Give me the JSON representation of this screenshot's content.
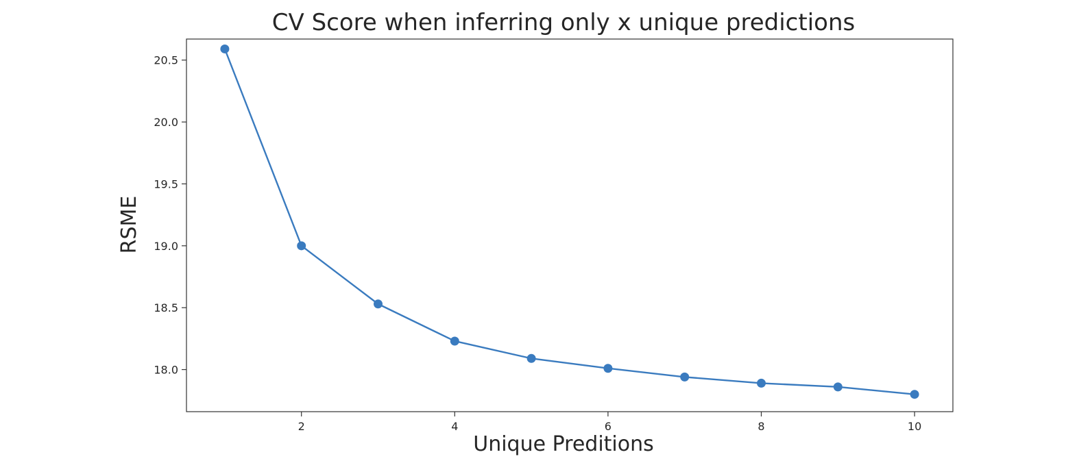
{
  "chart_data": {
    "type": "line",
    "title": "CV Score when inferring only x unique predictions",
    "xlabel": "Unique Preditions",
    "ylabel": "RSME",
    "xlim": [
      0.5,
      10.5
    ],
    "ylim": [
      17.66,
      20.67
    ],
    "x_ticks": [
      2,
      4,
      6,
      8,
      10
    ],
    "y_ticks": [
      18.0,
      18.5,
      19.0,
      19.5,
      20.0,
      20.5
    ],
    "x_tick_labels": [
      "2",
      "4",
      "6",
      "8",
      "10"
    ],
    "y_tick_labels": [
      "18.0",
      "18.5",
      "19.0",
      "19.5",
      "20.0",
      "20.5"
    ],
    "grid": false,
    "legend": "none",
    "series": [
      {
        "color": "#3a7bbf",
        "marker": "circle",
        "x": [
          1,
          2,
          3,
          4,
          5,
          6,
          7,
          8,
          9,
          10
        ],
        "y": [
          20.59,
          19.0,
          18.53,
          18.23,
          18.09,
          18.01,
          17.94,
          17.89,
          17.86,
          17.8
        ]
      }
    ]
  }
}
